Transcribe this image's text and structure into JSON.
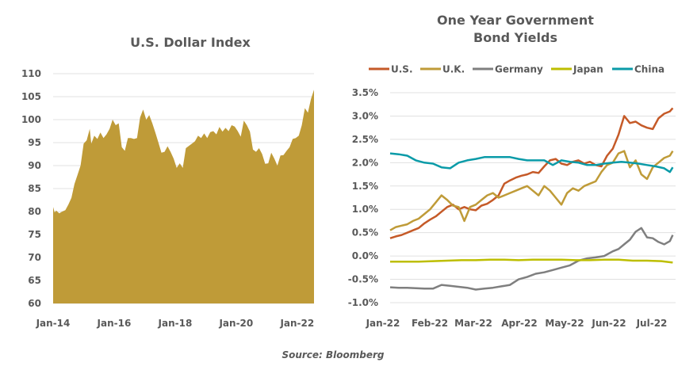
{
  "source": "Source: Bloomberg",
  "chart_data": [
    {
      "type": "area",
      "title": "U.S. Dollar Index",
      "xlabel": "",
      "ylabel": "",
      "ylim": [
        60,
        110
      ],
      "yticks": [
        "60",
        "65",
        "70",
        "75",
        "80",
        "85",
        "90",
        "95",
        "100",
        "105",
        "110"
      ],
      "xticks": [
        "Jan-14",
        "Jan-16",
        "Jan-18",
        "Jan-20",
        "Jan-22"
      ],
      "xlim": [
        2014.0,
        2022.55
      ],
      "grid": true,
      "color": "#BF9B38",
      "series": [
        {
          "name": "U.S. Dollar Index",
          "x": [
            2014.0,
            2014.05,
            2014.1,
            2014.2,
            2014.3,
            2014.4,
            2014.5,
            2014.6,
            2014.7,
            2014.8,
            2014.9,
            2015.0,
            2015.1,
            2015.2,
            2015.25,
            2015.35,
            2015.45,
            2015.55,
            2015.65,
            2015.75,
            2015.85,
            2015.95,
            2016.05,
            2016.15,
            2016.25,
            2016.35,
            2016.45,
            2016.55,
            2016.65,
            2016.75,
            2016.85,
            2016.95,
            2017.05,
            2017.15,
            2017.25,
            2017.35,
            2017.45,
            2017.55,
            2017.65,
            2017.75,
            2017.85,
            2017.95,
            2018.05,
            2018.15,
            2018.25,
            2018.35,
            2018.45,
            2018.55,
            2018.65,
            2018.75,
            2018.85,
            2018.95,
            2019.05,
            2019.15,
            2019.25,
            2019.35,
            2019.45,
            2019.55,
            2019.65,
            2019.75,
            2019.85,
            2019.95,
            2020.05,
            2020.15,
            2020.25,
            2020.35,
            2020.45,
            2020.55,
            2020.65,
            2020.75,
            2020.85,
            2020.95,
            2021.05,
            2021.15,
            2021.25,
            2021.35,
            2021.45,
            2021.55,
            2021.65,
            2021.75,
            2021.85,
            2021.95,
            2022.05,
            2022.15,
            2022.25,
            2022.35,
            2022.45,
            2022.55
          ],
          "values": [
            81.0,
            79.8,
            80.2,
            79.6,
            80.0,
            80.3,
            81.5,
            83.0,
            86.0,
            88.0,
            90.0,
            94.8,
            95.5,
            98.0,
            94.8,
            96.5,
            95.8,
            97.2,
            96.0,
            96.8,
            98.0,
            100.0,
            98.8,
            99.2,
            94.0,
            93.2,
            96.0,
            96.0,
            95.8,
            96.0,
            100.5,
            102.2,
            100.0,
            101.0,
            99.2,
            97.2,
            95.0,
            92.8,
            93.0,
            94.2,
            93.0,
            91.5,
            89.5,
            90.5,
            89.5,
            93.8,
            94.3,
            94.8,
            95.3,
            96.5,
            96.0,
            97.0,
            96.0,
            97.3,
            97.5,
            96.8,
            98.4,
            97.4,
            98.2,
            97.5,
            98.8,
            98.5,
            97.5,
            96.3,
            99.8,
            98.8,
            97.4,
            93.5,
            93.0,
            93.8,
            92.5,
            90.4,
            90.5,
            92.8,
            91.5,
            90.0,
            92.2,
            92.3,
            93.2,
            94.0,
            95.8,
            96.0,
            96.5,
            98.8,
            102.5,
            101.5,
            104.5,
            106.5
          ]
        }
      ]
    },
    {
      "type": "line",
      "title": "One Year Government Bond Yields",
      "title_lines": [
        "One Year Government",
        "Bond Yields"
      ],
      "xlabel": "",
      "ylabel": "",
      "ylim": [
        -1.0,
        3.5
      ],
      "yticks": [
        "-1.0%",
        "-0.5%",
        "0.0%",
        "0.5%",
        "1.0%",
        "1.5%",
        "2.0%",
        "2.5%",
        "3.0%",
        "3.5%"
      ],
      "xticks": [
        "Jan-22",
        "Feb-22",
        "Mar-22",
        "Apr-22",
        "May-22",
        "Jun-22",
        "Jul-22"
      ],
      "xlim": [
        0,
        100
      ],
      "grid": true,
      "legend": "top",
      "series": [
        {
          "name": "U.S.",
          "color": "#C55A28",
          "x": [
            0,
            2,
            4,
            6,
            8,
            10,
            12,
            14,
            16,
            18,
            20,
            22,
            24,
            26,
            28,
            30,
            32,
            34,
            36,
            38,
            40,
            42,
            44,
            46,
            48,
            50,
            52,
            54,
            56,
            58,
            60,
            62,
            64,
            66,
            68,
            70,
            72,
            74,
            76,
            78,
            80,
            82,
            84,
            86,
            88,
            90,
            92,
            94,
            96,
            98,
            99
          ],
          "values": [
            0.38,
            0.42,
            0.45,
            0.5,
            0.55,
            0.6,
            0.7,
            0.78,
            0.85,
            0.95,
            1.05,
            1.1,
            1.0,
            1.05,
            1.0,
            0.98,
            1.08,
            1.12,
            1.2,
            1.3,
            1.55,
            1.62,
            1.68,
            1.72,
            1.75,
            1.8,
            1.78,
            1.92,
            2.05,
            2.08,
            1.98,
            1.95,
            2.02,
            2.05,
            1.98,
            2.02,
            1.95,
            1.92,
            2.15,
            2.3,
            2.6,
            3.0,
            2.85,
            2.88,
            2.8,
            2.75,
            2.72,
            2.95,
            3.05,
            3.1,
            3.17
          ]
        },
        {
          "name": "U.K.",
          "color": "#BF9B38",
          "x": [
            0,
            2,
            4,
            6,
            8,
            10,
            12,
            14,
            16,
            18,
            20,
            22,
            24,
            26,
            28,
            30,
            32,
            34,
            36,
            38,
            40,
            42,
            44,
            46,
            48,
            50,
            52,
            54,
            56,
            58,
            60,
            62,
            64,
            66,
            68,
            70,
            72,
            74,
            76,
            78,
            80,
            82,
            84,
            86,
            88,
            90,
            92,
            94,
            96,
            98,
            99
          ],
          "values": [
            0.55,
            0.62,
            0.65,
            0.68,
            0.75,
            0.8,
            0.9,
            1.0,
            1.15,
            1.3,
            1.2,
            1.08,
            1.05,
            0.75,
            1.05,
            1.1,
            1.2,
            1.3,
            1.35,
            1.25,
            1.3,
            1.35,
            1.4,
            1.45,
            1.5,
            1.4,
            1.3,
            1.5,
            1.4,
            1.25,
            1.1,
            1.35,
            1.45,
            1.4,
            1.5,
            1.55,
            1.6,
            1.8,
            1.95,
            2.0,
            2.2,
            2.25,
            1.9,
            2.05,
            1.75,
            1.65,
            1.9,
            2.0,
            2.1,
            2.15,
            2.25
          ]
        },
        {
          "name": "Germany",
          "color": "#7F7F7F",
          "x": [
            0,
            3,
            6,
            9,
            12,
            15,
            18,
            21,
            24,
            27,
            30,
            33,
            36,
            39,
            42,
            45,
            48,
            51,
            54,
            57,
            60,
            63,
            66,
            69,
            72,
            75,
            78,
            80,
            82,
            84,
            86,
            88,
            90,
            92,
            94,
            96,
            98,
            99
          ],
          "values": [
            -0.67,
            -0.68,
            -0.68,
            -0.69,
            -0.7,
            -0.7,
            -0.62,
            -0.64,
            -0.66,
            -0.68,
            -0.72,
            -0.7,
            -0.68,
            -0.65,
            -0.62,
            -0.5,
            -0.45,
            -0.38,
            -0.35,
            -0.3,
            -0.25,
            -0.2,
            -0.1,
            -0.05,
            -0.03,
            0.0,
            0.1,
            0.15,
            0.25,
            0.35,
            0.52,
            0.6,
            0.4,
            0.38,
            0.3,
            0.25,
            0.32,
            0.45
          ]
        },
        {
          "name": "Japan",
          "color": "#BDBE00",
          "x": [
            0,
            5,
            10,
            15,
            20,
            25,
            30,
            35,
            40,
            45,
            50,
            55,
            60,
            65,
            70,
            75,
            80,
            85,
            90,
            95,
            99
          ],
          "values": [
            -0.12,
            -0.12,
            -0.12,
            -0.11,
            -0.1,
            -0.09,
            -0.09,
            -0.08,
            -0.08,
            -0.09,
            -0.08,
            -0.08,
            -0.08,
            -0.09,
            -0.09,
            -0.08,
            -0.08,
            -0.1,
            -0.1,
            -0.11,
            -0.14
          ]
        },
        {
          "name": "China",
          "color": "#0A9BA8",
          "x": [
            0,
            3,
            6,
            9,
            12,
            15,
            18,
            21,
            24,
            27,
            30,
            33,
            36,
            39,
            42,
            45,
            48,
            51,
            54,
            57,
            60,
            63,
            66,
            69,
            72,
            75,
            78,
            81,
            84,
            87,
            90,
            93,
            96,
            98,
            99
          ],
          "values": [
            2.2,
            2.18,
            2.15,
            2.05,
            2.0,
            1.98,
            1.9,
            1.88,
            2.0,
            2.05,
            2.08,
            2.12,
            2.12,
            2.12,
            2.12,
            2.08,
            2.05,
            2.05,
            2.05,
            1.95,
            2.05,
            2.02,
            2.0,
            1.95,
            1.95,
            1.98,
            2.0,
            2.02,
            2.0,
            1.98,
            1.95,
            1.92,
            1.88,
            1.8,
            1.9
          ]
        }
      ]
    }
  ]
}
